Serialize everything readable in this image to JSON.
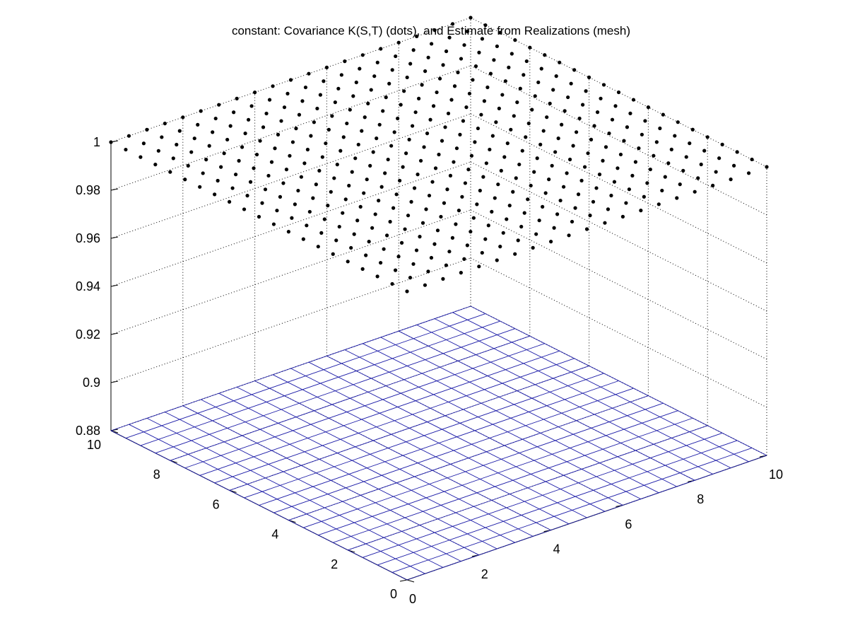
{
  "chart_data": {
    "type": "surface3d",
    "title": "constant: Covariance K(S,T) (dots), and Estimate from Realizations (mesh)",
    "xlabel": "",
    "ylabel": "",
    "zlabel": "",
    "xlim": [
      0,
      10
    ],
    "ylim": [
      0,
      10
    ],
    "zlim": [
      0.88,
      1
    ],
    "xticks": [
      "0",
      "2",
      "4",
      "6",
      "8",
      "10"
    ],
    "yticks": [
      "0",
      "2",
      "4",
      "6",
      "8",
      "10"
    ],
    "zticks": [
      "0.88",
      "0.9",
      "0.92",
      "0.94",
      "0.96",
      "0.98",
      "1"
    ],
    "grid": true,
    "series": [
      {
        "name": "Covariance K(S,T)",
        "style": "dots",
        "color": "#000000",
        "grid_start": 0,
        "grid_end": 10,
        "grid_step": 0.5,
        "z_constant": 1
      },
      {
        "name": "Estimate from Realizations",
        "style": "mesh",
        "color": "#1c1ca8",
        "grid_start": 0,
        "grid_end": 10,
        "grid_step": 0.5,
        "z_constant": 0.88
      }
    ]
  }
}
